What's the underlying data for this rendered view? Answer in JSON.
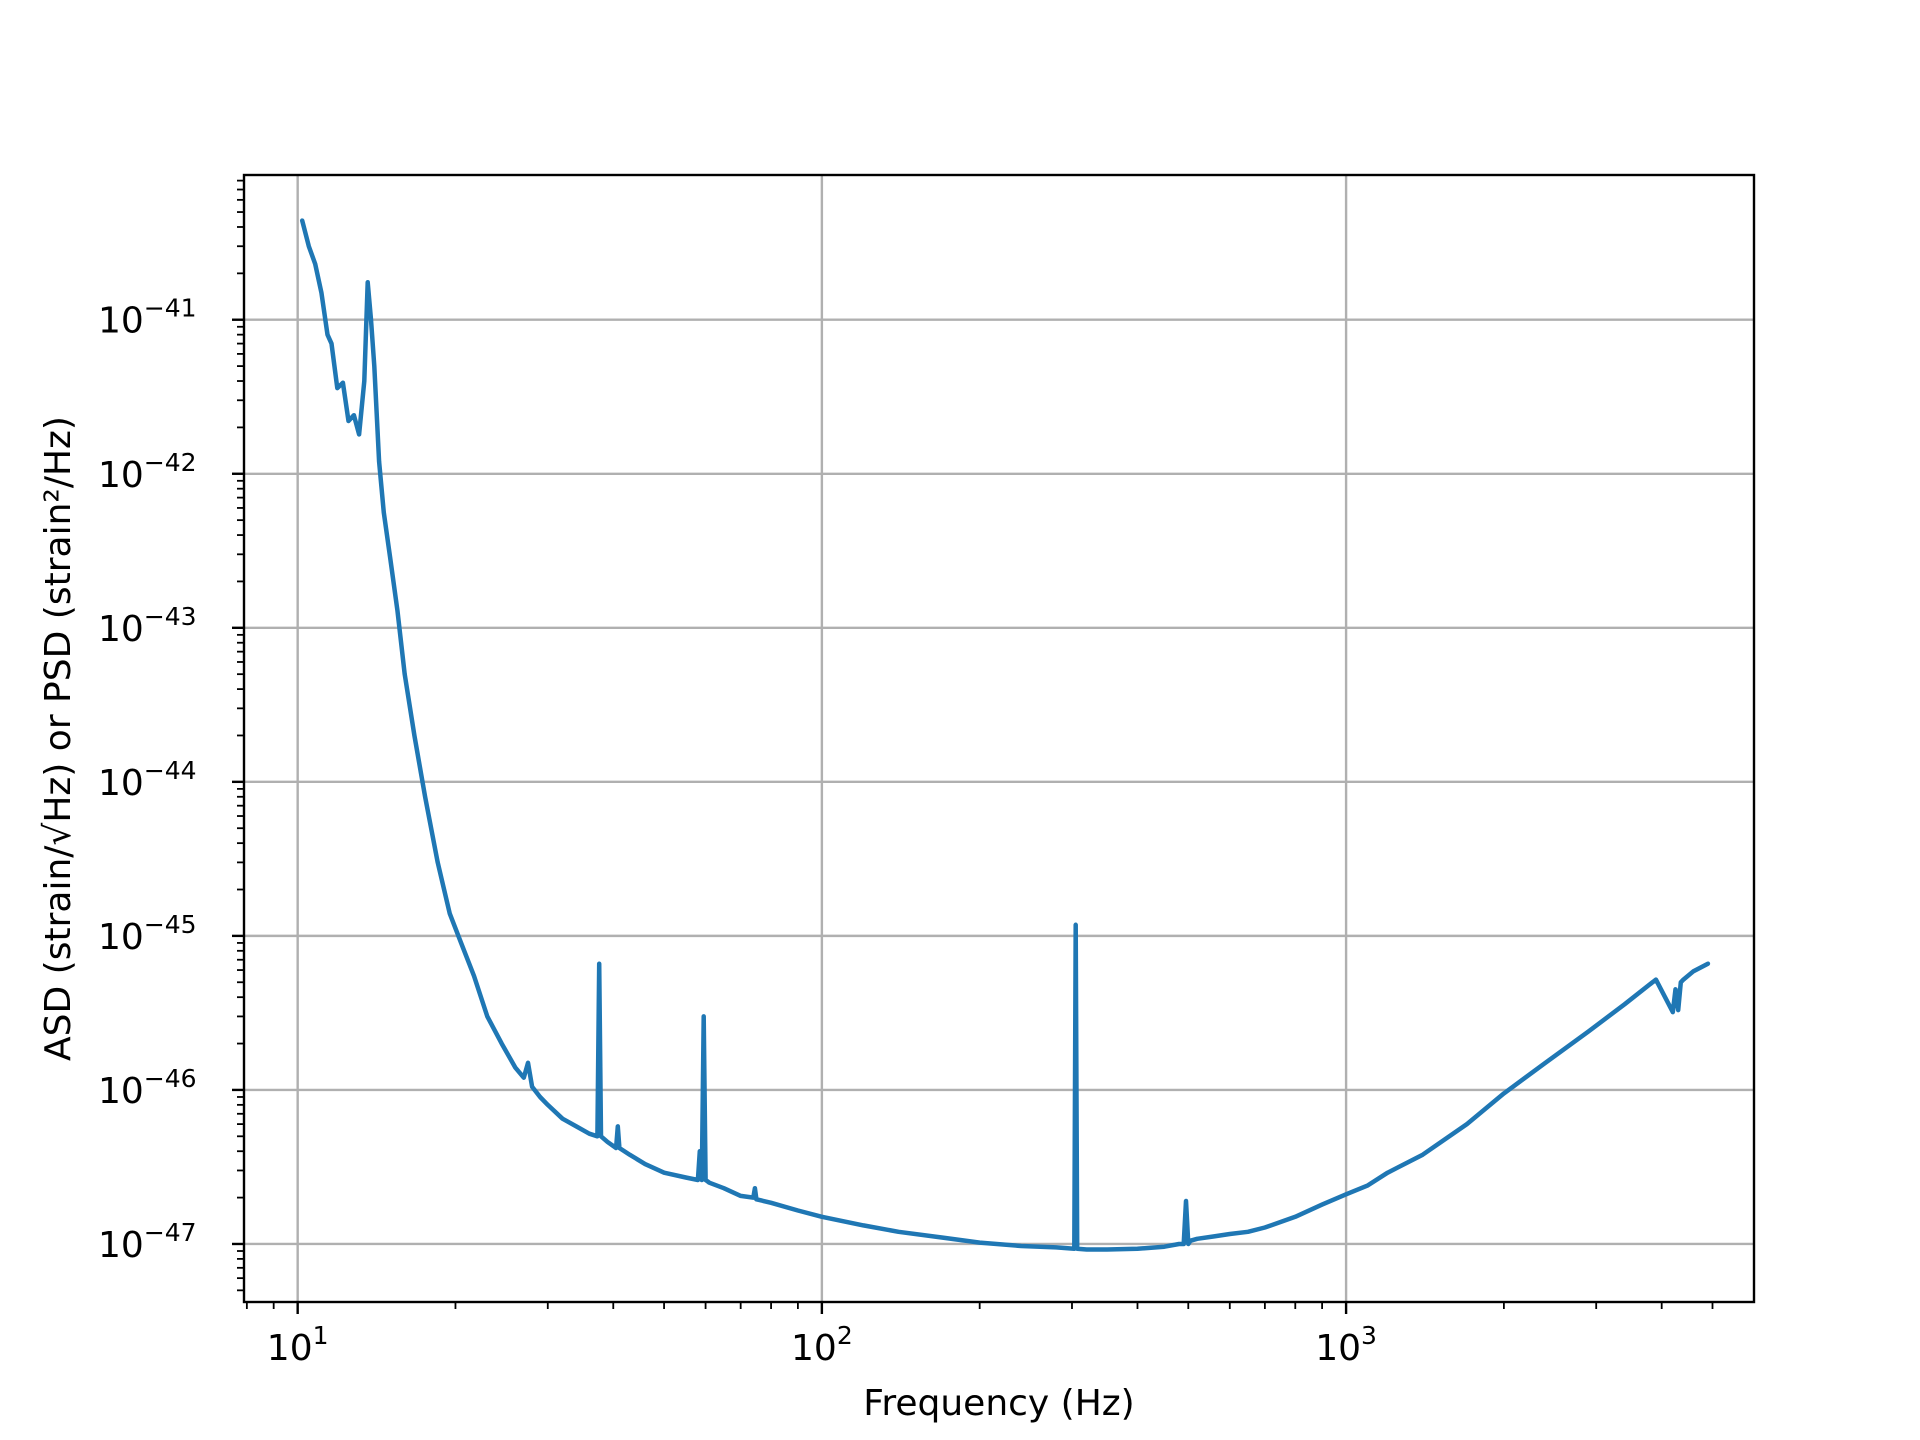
{
  "chart_data": {
    "type": "line",
    "xlabel": "Frequency (Hz)",
    "ylabel": "ASD (strain/√Hz) or PSD (strain²/Hz)",
    "xscale": "log",
    "yscale": "log",
    "xlim": [
      7.9,
      6000
    ],
    "ylim": [
      4.2e-48,
      8.7e-41
    ],
    "grid": true,
    "x_ticks": [
      {
        "value": 10,
        "base": "10",
        "exp": "1"
      },
      {
        "value": 100,
        "base": "10",
        "exp": "2"
      },
      {
        "value": 1000,
        "base": "10",
        "exp": "3"
      }
    ],
    "y_ticks": [
      {
        "value": 1e-47,
        "base": "10",
        "exp": "−47"
      },
      {
        "value": 1e-46,
        "base": "10",
        "exp": "−46"
      },
      {
        "value": 1e-45,
        "base": "10",
        "exp": "−45"
      },
      {
        "value": 1e-44,
        "base": "10",
        "exp": "−44"
      },
      {
        "value": 1e-43,
        "base": "10",
        "exp": "−43"
      },
      {
        "value": 1e-42,
        "base": "10",
        "exp": "−42"
      },
      {
        "value": 1e-41,
        "base": "10",
        "exp": "−41"
      }
    ],
    "series": [
      {
        "color": "#1f77b4",
        "x": [
          10.2,
          10.5,
          10.8,
          11.1,
          11.4,
          11.6,
          11.9,
          12.2,
          12.5,
          12.8,
          13.1,
          13.4,
          13.6,
          13.8,
          14.0,
          14.3,
          14.6,
          15.0,
          15.5,
          16.0,
          16.7,
          17.5,
          18.5,
          19.5,
          20.5,
          21.7,
          23.0,
          24.5,
          26.0,
          27.0,
          27.5,
          28.0,
          29.0,
          30.0,
          32.0,
          34.0,
          36.0,
          37.3,
          37.6,
          37.9,
          39.0,
          40.5,
          40.8,
          41.1,
          43.0,
          46.0,
          50.0,
          55.0,
          58.0,
          58.5,
          59.0,
          59.5,
          60.0,
          60.5,
          61.0,
          65.0,
          70.0,
          74.0,
          74.5,
          75.0,
          80.0,
          90.0,
          100.0,
          120.0,
          140.0,
          170.0,
          200.0,
          240.0,
          280.0,
          303.0,
          305.0,
          307.0,
          320.0,
          350.0,
          400.0,
          450.0,
          480.0,
          490.0,
          495.0,
          500.0,
          505.0,
          520.0,
          560.0,
          600.0,
          650.0,
          700.0,
          800.0,
          900.0,
          1000.0,
          1100.0,
          1200.0,
          1400.0,
          1700.0,
          2000.0,
          2400.0,
          2900.0,
          3400.0,
          3900.0,
          4200.0,
          4250.0,
          4300.0,
          4350.0,
          4400.0,
          4600.0,
          4900.0
        ],
        "y": [
          4.4e-41,
          3e-41,
          2.3e-41,
          1.5e-41,
          8e-42,
          7e-42,
          3.6e-42,
          3.9e-42,
          2.2e-42,
          2.4e-42,
          1.8e-42,
          4e-42,
          1.75e-41,
          1e-41,
          5e-42,
          1.2e-42,
          5.6e-43,
          2.9e-43,
          1.3e-43,
          5e-44,
          2e-44,
          8e-45,
          3e-45,
          1.4e-45,
          9e-46,
          5.5e-46,
          3e-46,
          2e-46,
          1.4e-46,
          1.2e-46,
          1.5e-46,
          1.05e-46,
          9e-47,
          8e-47,
          6.5e-47,
          5.8e-47,
          5.2e-47,
          5e-47,
          6.6e-46,
          5e-47,
          4.6e-47,
          4.2e-47,
          5.8e-47,
          4.2e-47,
          3.8e-47,
          3.3e-47,
          2.9e-47,
          2.7e-47,
          2.6e-47,
          4e-47,
          2.6e-47,
          3e-46,
          2.6e-47,
          2.55e-47,
          2.5e-47,
          2.3e-47,
          2.05e-47,
          2e-47,
          2.3e-47,
          1.95e-47,
          1.85e-47,
          1.65e-47,
          1.5e-47,
          1.32e-47,
          1.2e-47,
          1.1e-47,
          1.02e-47,
          9.7e-48,
          9.5e-48,
          9.3e-48,
          1.18e-45,
          9.3e-48,
          9.2e-48,
          9.2e-48,
          9.3e-48,
          9.6e-48,
          1e-47,
          1e-47,
          1.9e-47,
          1e-47,
          1.05e-47,
          1.08e-47,
          1.12e-47,
          1.16e-47,
          1.2e-47,
          1.28e-47,
          1.5e-47,
          1.8e-47,
          2.1e-47,
          2.4e-47,
          2.9e-47,
          3.8e-47,
          6e-47,
          9.5e-47,
          1.5e-46,
          2.4e-46,
          3.6e-46,
          5.2e-46,
          3.2e-46,
          4.5e-46,
          3.3e-46,
          5e-46,
          5.2e-46,
          5.9e-46,
          6.6e-46
        ]
      }
    ]
  }
}
